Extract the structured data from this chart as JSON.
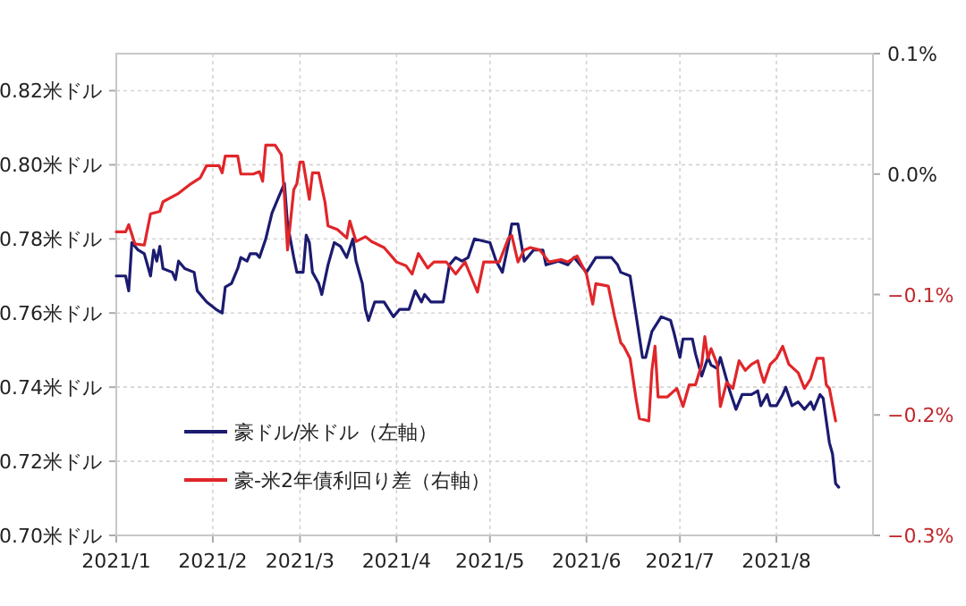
{
  "chart_data": {
    "type": "line",
    "xlim": [
      "2021-01-01",
      "2021-09-01"
    ],
    "xticks": [
      {
        "value": "2021-01-01",
        "label": "2021/1"
      },
      {
        "value": "2021-02-01",
        "label": "2021/2"
      },
      {
        "value": "2021-03-01",
        "label": "2021/3"
      },
      {
        "value": "2021-04-01",
        "label": "2021/4"
      },
      {
        "value": "2021-05-01",
        "label": "2021/5"
      },
      {
        "value": "2021-06-01",
        "label": "2021/6"
      },
      {
        "value": "2021-07-01",
        "label": "2021/7"
      },
      {
        "value": "2021-08-01",
        "label": "2021/8"
      }
    ],
    "ylim": [
      0.7,
      0.83
    ],
    "yticks": [
      {
        "value": 0.7,
        "label": "0.70米ドル"
      },
      {
        "value": 0.72,
        "label": "0.72米ドル"
      },
      {
        "value": 0.74,
        "label": "0.74米ドル"
      },
      {
        "value": 0.76,
        "label": "0.76米ドル"
      },
      {
        "value": 0.78,
        "label": "0.78米ドル"
      },
      {
        "value": 0.8,
        "label": "0.80米ドル"
      },
      {
        "value": 0.82,
        "label": "0.82米ドル"
      }
    ],
    "y2lim": [
      -0.3,
      0.1
    ],
    "y2ticks": [
      {
        "value": -0.3,
        "label": "−0.3%"
      },
      {
        "value": -0.2,
        "label": "−0.2%"
      },
      {
        "value": -0.1,
        "label": "−0.1%"
      },
      {
        "value": 0.0,
        "label": "0.0%"
      },
      {
        "value": 0.1,
        "label": "0.1%"
      }
    ],
    "grid": true,
    "legend": "bottom left",
    "series": [
      {
        "name": "豪ドル/米ドル（左軸）",
        "color": "#1b1b70",
        "x": [
          "2021-01-01",
          "2021-01-04",
          "2021-01-05",
          "2021-01-06",
          "2021-01-08",
          "2021-01-10",
          "2021-01-12",
          "2021-01-13",
          "2021-01-14",
          "2021-01-15",
          "2021-01-16",
          "2021-01-19",
          "2021-01-20",
          "2021-01-21",
          "2021-01-23",
          "2021-01-26",
          "2021-01-27",
          "2021-01-30",
          "2021-02-02",
          "2021-02-04",
          "2021-02-05",
          "2021-02-07",
          "2021-02-09",
          "2021-02-10",
          "2021-02-12",
          "2021-02-13",
          "2021-02-15",
          "2021-02-16",
          "2021-02-18",
          "2021-02-20",
          "2021-02-22",
          "2021-02-24",
          "2021-02-25",
          "2021-02-27",
          "2021-02-28",
          "2021-03-02",
          "2021-03-03",
          "2021-03-04",
          "2021-03-05",
          "2021-03-07",
          "2021-03-08",
          "2021-03-10",
          "2021-03-12",
          "2021-03-14",
          "2021-03-16",
          "2021-03-18",
          "2021-03-19",
          "2021-03-21",
          "2021-03-22",
          "2021-03-23",
          "2021-03-25",
          "2021-03-28",
          "2021-03-31",
          "2021-04-02",
          "2021-04-05",
          "2021-04-07",
          "2021-04-09",
          "2021-04-10",
          "2021-04-12",
          "2021-04-16",
          "2021-04-18",
          "2021-04-20",
          "2021-04-22",
          "2021-04-24",
          "2021-04-26",
          "2021-05-01",
          "2021-05-03",
          "2021-05-05",
          "2021-05-07",
          "2021-05-08",
          "2021-05-10",
          "2021-05-12",
          "2021-05-15",
          "2021-05-18",
          "2021-05-19",
          "2021-05-23",
          "2021-05-26",
          "2021-05-28",
          "2021-06-01",
          "2021-06-04",
          "2021-06-07",
          "2021-06-09",
          "2021-06-11",
          "2021-06-12",
          "2021-06-15",
          "2021-06-17",
          "2021-06-19",
          "2021-06-20",
          "2021-06-22",
          "2021-06-25",
          "2021-06-28",
          "2021-06-29",
          "2021-07-01",
          "2021-07-02",
          "2021-07-05",
          "2021-07-06",
          "2021-07-08",
          "2021-07-10",
          "2021-07-11",
          "2021-07-13",
          "2021-07-14",
          "2021-07-16",
          "2021-07-17",
          "2021-07-19",
          "2021-07-21",
          "2021-07-24",
          "2021-07-26",
          "2021-07-27",
          "2021-07-29",
          "2021-07-30",
          "2021-08-01",
          "2021-08-03",
          "2021-08-04",
          "2021-08-06",
          "2021-08-08",
          "2021-08-10",
          "2021-08-12",
          "2021-08-13",
          "2021-08-15",
          "2021-08-16",
          "2021-08-18",
          "2021-08-19",
          "2021-08-20",
          "2021-08-21"
        ],
        "values": [
          0.77,
          0.77,
          0.766,
          0.779,
          0.777,
          0.776,
          0.77,
          0.777,
          0.774,
          0.778,
          0.772,
          0.771,
          0.769,
          0.774,
          0.772,
          0.771,
          0.766,
          0.763,
          0.761,
          0.76,
          0.767,
          0.768,
          0.772,
          0.775,
          0.774,
          0.776,
          0.776,
          0.775,
          0.78,
          0.787,
          0.791,
          0.795,
          0.784,
          0.775,
          0.771,
          0.771,
          0.781,
          0.779,
          0.771,
          0.768,
          0.765,
          0.773,
          0.779,
          0.778,
          0.775,
          0.78,
          0.774,
          0.768,
          0.761,
          0.758,
          0.763,
          0.763,
          0.759,
          0.761,
          0.761,
          0.766,
          0.763,
          0.765,
          0.763,
          0.763,
          0.773,
          0.775,
          0.774,
          0.775,
          0.78,
          0.779,
          0.774,
          0.771,
          0.779,
          0.784,
          0.784,
          0.774,
          0.777,
          0.777,
          0.773,
          0.774,
          0.773,
          0.775,
          0.771,
          0.775,
          0.775,
          0.775,
          0.773,
          0.771,
          0.77,
          0.759,
          0.748,
          0.748,
          0.755,
          0.759,
          0.758,
          0.755,
          0.748,
          0.753,
          0.753,
          0.749,
          0.743,
          0.748,
          0.746,
          0.745,
          0.748,
          0.742,
          0.739,
          0.734,
          0.738,
          0.738,
          0.739,
          0.735,
          0.738,
          0.735,
          0.735,
          0.738,
          0.74,
          0.735,
          0.736,
          0.734,
          0.736,
          0.734,
          0.738,
          0.737,
          0.725,
          0.722,
          0.714,
          0.713
        ]
      },
      {
        "name": "豪-米2年債利回り差（右軸）",
        "color": "#e0262a",
        "axis": "y2",
        "x": [
          "2021-01-01",
          "2021-01-04",
          "2021-01-05",
          "2021-01-07",
          "2021-01-10",
          "2021-01-12",
          "2021-01-15",
          "2021-01-16",
          "2021-01-21",
          "2021-01-25",
          "2021-01-28",
          "2021-01-30",
          "2021-02-03",
          "2021-02-04",
          "2021-02-05",
          "2021-02-09",
          "2021-02-10",
          "2021-02-14",
          "2021-02-16",
          "2021-02-17",
          "2021-02-18",
          "2021-02-21",
          "2021-02-23",
          "2021-02-24",
          "2021-02-25",
          "2021-02-27",
          "2021-02-28",
          "2021-03-01",
          "2021-03-02",
          "2021-03-04",
          "2021-03-05",
          "2021-03-07",
          "2021-03-09",
          "2021-03-10",
          "2021-03-13",
          "2021-03-16",
          "2021-03-17",
          "2021-03-19",
          "2021-03-22",
          "2021-03-24",
          "2021-03-28",
          "2021-04-01",
          "2021-04-04",
          "2021-04-06",
          "2021-04-08",
          "2021-04-11",
          "2021-04-13",
          "2021-04-17",
          "2021-04-20",
          "2021-04-23",
          "2021-04-27",
          "2021-04-29",
          "2021-05-04",
          "2021-05-07",
          "2021-05-08",
          "2021-05-10",
          "2021-05-12",
          "2021-05-14",
          "2021-05-17",
          "2021-05-20",
          "2021-05-24",
          "2021-05-26",
          "2021-05-29",
          "2021-06-01",
          "2021-06-03",
          "2021-06-04",
          "2021-06-08",
          "2021-06-10",
          "2021-06-12",
          "2021-06-13",
          "2021-06-15",
          "2021-06-17",
          "2021-06-18",
          "2021-06-21",
          "2021-06-22",
          "2021-06-23",
          "2021-06-24",
          "2021-06-27",
          "2021-06-30",
          "2021-07-02",
          "2021-07-04",
          "2021-07-06",
          "2021-07-08",
          "2021-07-09",
          "2021-07-10",
          "2021-07-11",
          "2021-07-13",
          "2021-07-14",
          "2021-07-16",
          "2021-07-18",
          "2021-07-20",
          "2021-07-22",
          "2021-07-24",
          "2021-07-26",
          "2021-07-27",
          "2021-07-28",
          "2021-07-30",
          "2021-08-01",
          "2021-08-03",
          "2021-08-05",
          "2021-08-08",
          "2021-08-10",
          "2021-08-12",
          "2021-08-14",
          "2021-08-16",
          "2021-08-17",
          "2021-08-18",
          "2021-08-20"
        ],
        "values": [
          -0.048,
          -0.048,
          -0.042,
          -0.058,
          -0.059,
          -0.033,
          -0.031,
          -0.023,
          -0.016,
          -0.008,
          -0.003,
          0.007,
          0.007,
          0.001,
          0.015,
          0.015,
          0.0,
          0.0,
          0.002,
          -0.006,
          0.024,
          0.024,
          0.016,
          -0.018,
          -0.063,
          -0.013,
          -0.008,
          0.01,
          0.01,
          -0.021,
          0.001,
          0.001,
          -0.023,
          -0.043,
          -0.046,
          -0.053,
          -0.039,
          -0.056,
          -0.052,
          -0.056,
          -0.061,
          -0.073,
          -0.076,
          -0.083,
          -0.066,
          -0.078,
          -0.073,
          -0.073,
          -0.083,
          -0.073,
          -0.098,
          -0.073,
          -0.073,
          -0.053,
          -0.051,
          -0.073,
          -0.063,
          -0.061,
          -0.063,
          -0.073,
          -0.071,
          -0.073,
          -0.068,
          -0.083,
          -0.108,
          -0.091,
          -0.093,
          -0.118,
          -0.14,
          -0.143,
          -0.153,
          -0.188,
          -0.203,
          -0.205,
          -0.163,
          -0.143,
          -0.185,
          -0.185,
          -0.178,
          -0.193,
          -0.175,
          -0.175,
          -0.158,
          -0.135,
          -0.153,
          -0.145,
          -0.158,
          -0.193,
          -0.173,
          -0.178,
          -0.155,
          -0.163,
          -0.158,
          -0.155,
          -0.165,
          -0.173,
          -0.158,
          -0.153,
          -0.143,
          -0.158,
          -0.165,
          -0.178,
          -0.17,
          -0.153,
          -0.153,
          -0.175,
          -0.178,
          -0.205
        ]
      }
    ]
  }
}
